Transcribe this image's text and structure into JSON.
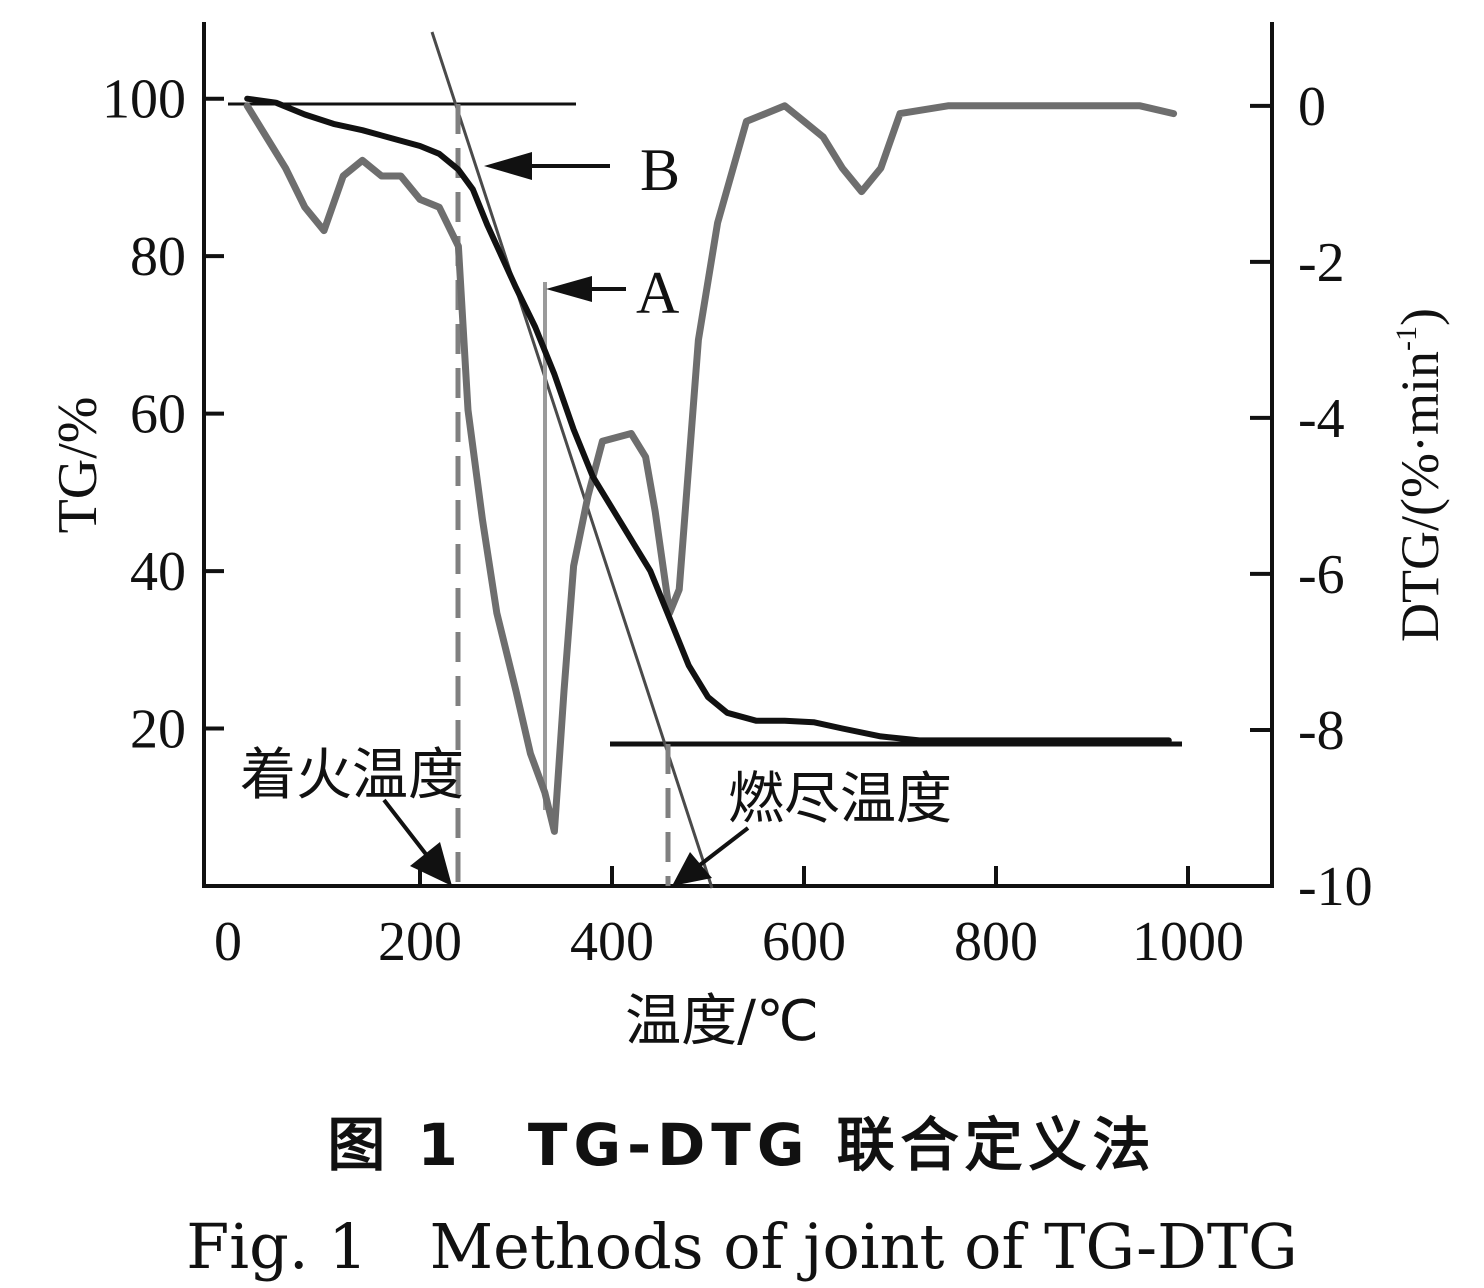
{
  "chart_data": {
    "type": "line",
    "xlabel": "温度/℃",
    "ylabel_left": "TG/%",
    "ylabel_right": "DTG/(%·min",
    "ylabel_right_sup": "-1",
    "ylabel_right_close": ")",
    "xlim": [
      0,
      1000
    ],
    "ylim_left": [
      0,
      110
    ],
    "ylim_right": [
      -10,
      1.1
    ],
    "x_ticks": [
      "0",
      "200",
      "400",
      "600",
      "800",
      "1000"
    ],
    "y_left_ticks": [
      "20",
      "40",
      "60",
      "80",
      "100"
    ],
    "y_right_ticks": [
      "0",
      "-2",
      "-4",
      "-6",
      "-8",
      "-10"
    ],
    "grid": false,
    "series": [
      {
        "axis": "left",
        "color": "#111111",
        "x": [
          20,
          50,
          80,
          110,
          140,
          170,
          200,
          220,
          240,
          255,
          270,
          285,
          300,
          320,
          340,
          360,
          380,
          400,
          420,
          440,
          460,
          480,
          500,
          520,
          550,
          580,
          610,
          640,
          680,
          720,
          800,
          900,
          980
        ],
        "y": [
          100,
          99.5,
          98,
          96.8,
          96,
          95,
          94,
          93,
          91,
          88.5,
          84,
          80,
          76,
          71,
          65,
          58,
          52,
          48,
          44,
          40,
          34,
          28,
          24,
          22,
          21,
          21,
          20.8,
          20,
          19,
          18.5,
          18.5,
          18.5,
          18.5
        ]
      },
      {
        "axis": "right",
        "color": "#6e6e6e",
        "x": [
          20,
          40,
          60,
          80,
          100,
          120,
          140,
          160,
          180,
          200,
          220,
          240,
          250,
          265,
          280,
          300,
          315,
          330,
          340,
          350,
          360,
          375,
          390,
          420,
          435,
          445,
          460,
          470,
          490,
          510,
          540,
          560,
          580,
          600,
          620,
          640,
          660,
          680,
          700,
          750,
          800,
          850,
          900,
          950,
          985
        ],
        "y": [
          0,
          -0.4,
          -0.8,
          -1.3,
          -1.6,
          -0.9,
          -0.7,
          -0.9,
          -0.9,
          -1.2,
          -1.3,
          -1.8,
          -3.9,
          -5.3,
          -6.5,
          -7.5,
          -8.3,
          -8.8,
          -9.3,
          -7.5,
          -5.9,
          -5.0,
          -4.3,
          -4.2,
          -4.5,
          -5.2,
          -6.5,
          -6.2,
          -3.0,
          -1.5,
          -0.2,
          -0.1,
          0,
          -0.2,
          -0.4,
          -0.8,
          -1.1,
          -0.8,
          -0.1,
          0,
          0,
          0,
          0,
          0,
          -0.1
        ]
      }
    ],
    "annotations": {
      "b_label": "B",
      "a_label": "A",
      "ignition_label": "着火温度",
      "burnout_label": "燃尽温度"
    }
  },
  "caption": {
    "chinese": "图 1　TG-DTG 联合定义法",
    "english": "Fig. 1　Methods of joint of TG-DTG"
  }
}
